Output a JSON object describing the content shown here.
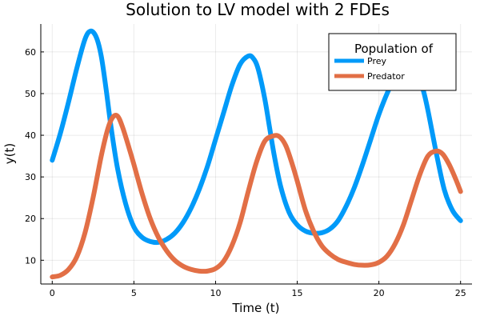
{
  "chart_data": {
    "type": "line",
    "title": "Solution to LV model with 2 FDEs",
    "xlabel": "Time (t)",
    "ylabel": "y(t)",
    "xlim": [
      -0.7,
      25.7
    ],
    "ylim": [
      4.3,
      66.7
    ],
    "xticks": [
      0,
      5,
      10,
      15,
      20,
      25
    ],
    "yticks": [
      10,
      20,
      30,
      40,
      50,
      60
    ],
    "grid": true,
    "legend": {
      "title": "Population of",
      "placement": "top-right"
    },
    "series": [
      {
        "name": "Prey",
        "color": "#009af9",
        "x": [
          0,
          0.5,
          1,
          1.5,
          2,
          2.35,
          2.7,
          3,
          3.3,
          3.6,
          4,
          4.5,
          5,
          5.5,
          6,
          6.5,
          7,
          7.5,
          8,
          8.5,
          9,
          9.5,
          10,
          10.5,
          11,
          11.5,
          12,
          12.3,
          12.6,
          13,
          13.3,
          13.6,
          14,
          14.5,
          15,
          15.5,
          16,
          16.5,
          17,
          17.5,
          18,
          18.5,
          19,
          19.5,
          20,
          20.5,
          21,
          21.5,
          21.9,
          22.3,
          22.7,
          23,
          23.5,
          24,
          24.5,
          25
        ],
        "y": [
          34,
          40.5,
          48,
          56,
          63,
          65,
          63.5,
          59,
          51,
          42,
          32,
          23.5,
          18,
          15.5,
          14.5,
          14.3,
          15,
          16.5,
          19,
          22.5,
          27,
          32.5,
          39,
          45.5,
          52,
          57,
          59,
          58.5,
          56,
          49,
          42,
          35,
          27.5,
          21.5,
          18.5,
          17,
          16.5,
          16.6,
          17.5,
          19.5,
          23,
          27.5,
          33,
          39,
          45,
          50,
          54,
          56.2,
          56.5,
          55,
          51,
          46,
          36,
          27,
          22,
          19.5
        ]
      },
      {
        "name": "Predator",
        "color": "#e26f46",
        "x": [
          0,
          0.5,
          1,
          1.5,
          2,
          2.5,
          3,
          3.4,
          3.7,
          4,
          4.3,
          4.7,
          5,
          5.5,
          6,
          6.5,
          7,
          7.5,
          8,
          8.5,
          9,
          9.5,
          10,
          10.5,
          11,
          11.5,
          12,
          12.5,
          13,
          13.5,
          13.9,
          14.3,
          14.7,
          15,
          15.5,
          16,
          16.5,
          17,
          17.5,
          18,
          18.5,
          19,
          19.5,
          20,
          20.5,
          21,
          21.5,
          22,
          22.5,
          23,
          23.5,
          23.9,
          24.3,
          24.7,
          25
        ],
        "y": [
          6,
          6.4,
          7.8,
          10.8,
          16.5,
          25,
          35,
          41.5,
          44.3,
          44.6,
          42,
          37,
          33,
          26,
          20,
          15.5,
          12.3,
          10,
          8.6,
          7.8,
          7.4,
          7.4,
          8,
          9.8,
          13.5,
          19,
          26.5,
          33.5,
          38.5,
          39.8,
          39.7,
          37.5,
          33,
          29,
          22,
          17,
          13.5,
          11.5,
          10.2,
          9.5,
          9,
          8.8,
          8.9,
          9.5,
          11,
          14,
          18.5,
          24.5,
          30.5,
          35,
          36.2,
          35.5,
          33,
          29.5,
          26.5
        ]
      }
    ]
  }
}
